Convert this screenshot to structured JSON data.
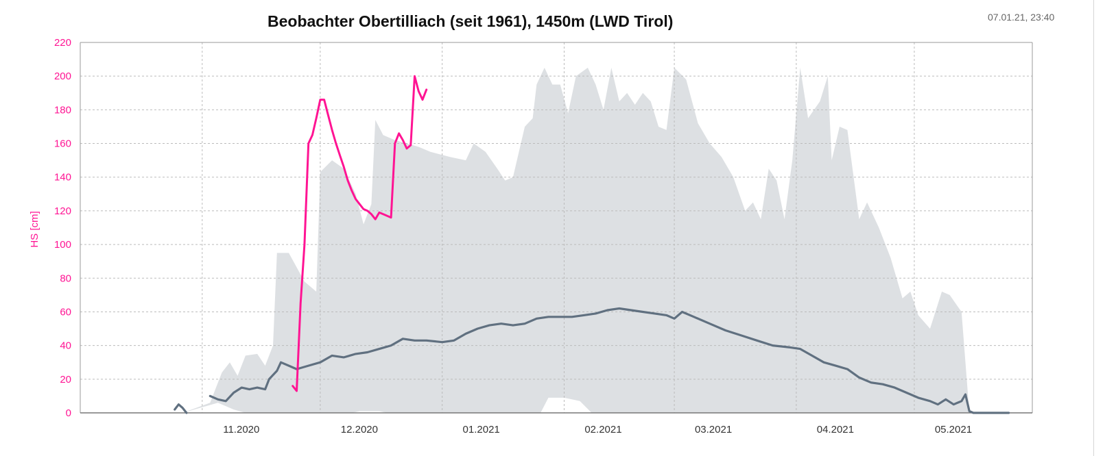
{
  "header": {
    "title": "Beobachter Obertilliach (seit 1961), 1450m (LWD Tirol)",
    "timestamp": "07.01.21, 23:40"
  },
  "colors": {
    "current_season": "#ff1493",
    "median": "#607080",
    "range_band": "#dde0e3",
    "grid": "#bbbbbb"
  },
  "chart_data": {
    "type": "line",
    "title": "Beobachter Obertilliach (seit 1961), 1450m (LWD Tirol)",
    "ylabel": "HS [cm]",
    "xlabel": "",
    "ylim": [
      0,
      220
    ],
    "yticks": [
      0,
      20,
      40,
      60,
      80,
      100,
      120,
      140,
      160,
      180,
      200,
      220
    ],
    "xlim": [
      "2020-10-01",
      "2021-05-31"
    ],
    "xticks": [
      {
        "date": "2020-11-01",
        "label": "11.2020"
      },
      {
        "date": "2020-12-01",
        "label": "12.2020"
      },
      {
        "date": "2021-01-01",
        "label": "01.2021"
      },
      {
        "date": "2021-02-01",
        "label": "02.2021"
      },
      {
        "date": "2021-03-01",
        "label": "03.2021"
      },
      {
        "date": "2021-04-01",
        "label": "04.2021"
      },
      {
        "date": "2021-05-01",
        "label": "05.2021"
      }
    ],
    "grid": true,
    "legend": "none",
    "series": [
      {
        "kind": "band",
        "color": "#dde0e3",
        "upper": [
          [
            "2020-10-27",
            0
          ],
          [
            "2020-11-03",
            6
          ],
          [
            "2020-11-06",
            24
          ],
          [
            "2020-11-08",
            30
          ],
          [
            "2020-11-10",
            22
          ],
          [
            "2020-11-12",
            34
          ],
          [
            "2020-11-15",
            35
          ],
          [
            "2020-11-17",
            28
          ],
          [
            "2020-11-19",
            40
          ],
          [
            "2020-11-20",
            95
          ],
          [
            "2020-11-23",
            95
          ],
          [
            "2020-11-27",
            78
          ],
          [
            "2020-11-30",
            72
          ],
          [
            "2020-12-01",
            143
          ],
          [
            "2020-12-04",
            150
          ],
          [
            "2020-12-07",
            145
          ],
          [
            "2020-12-10",
            130
          ],
          [
            "2020-12-12",
            112
          ],
          [
            "2020-12-14",
            124
          ],
          [
            "2020-12-15",
            174
          ],
          [
            "2020-12-17",
            165
          ],
          [
            "2020-12-20",
            162
          ],
          [
            "2020-12-23",
            160
          ],
          [
            "2020-12-26",
            158
          ],
          [
            "2020-12-29",
            155
          ],
          [
            "2021-01-03",
            152
          ],
          [
            "2021-01-07",
            150
          ],
          [
            "2021-01-09",
            160
          ],
          [
            "2021-01-12",
            155
          ],
          [
            "2021-01-15",
            145
          ],
          [
            "2021-01-17",
            138
          ],
          [
            "2021-01-19",
            140
          ],
          [
            "2021-01-22",
            170
          ],
          [
            "2021-01-24",
            175
          ],
          [
            "2021-01-25",
            195
          ],
          [
            "2021-01-27",
            205
          ],
          [
            "2021-01-29",
            195
          ],
          [
            "2021-01-31",
            195
          ],
          [
            "2021-02-02",
            178
          ],
          [
            "2021-02-04",
            200
          ],
          [
            "2021-02-07",
            205
          ],
          [
            "2021-02-09",
            195
          ],
          [
            "2021-02-11",
            180
          ],
          [
            "2021-02-13",
            205
          ],
          [
            "2021-02-15",
            185
          ],
          [
            "2021-02-17",
            190
          ],
          [
            "2021-02-19",
            183
          ],
          [
            "2021-02-21",
            190
          ],
          [
            "2021-02-23",
            185
          ],
          [
            "2021-02-25",
            170
          ],
          [
            "2021-02-27",
            168
          ],
          [
            "2021-03-01",
            205
          ],
          [
            "2021-03-04",
            198
          ],
          [
            "2021-03-07",
            172
          ],
          [
            "2021-03-10",
            160
          ],
          [
            "2021-03-13",
            152
          ],
          [
            "2021-03-16",
            140
          ],
          [
            "2021-03-19",
            120
          ],
          [
            "2021-03-21",
            125
          ],
          [
            "2021-03-23",
            115
          ],
          [
            "2021-03-25",
            145
          ],
          [
            "2021-03-27",
            138
          ],
          [
            "2021-03-29",
            115
          ],
          [
            "2021-03-31",
            150
          ],
          [
            "2021-04-02",
            205
          ],
          [
            "2021-04-04",
            175
          ],
          [
            "2021-04-07",
            185
          ],
          [
            "2021-04-09",
            200
          ],
          [
            "2021-04-10",
            150
          ],
          [
            "2021-04-12",
            170
          ],
          [
            "2021-04-14",
            168
          ],
          [
            "2021-04-17",
            115
          ],
          [
            "2021-04-19",
            125
          ],
          [
            "2021-04-22",
            110
          ],
          [
            "2021-04-25",
            92
          ],
          [
            "2021-04-28",
            68
          ],
          [
            "2021-04-30",
            72
          ],
          [
            "2021-05-02",
            58
          ],
          [
            "2021-05-05",
            50
          ],
          [
            "2021-05-08",
            72
          ],
          [
            "2021-05-10",
            70
          ],
          [
            "2021-05-13",
            60
          ],
          [
            "2021-05-15",
            0
          ]
        ],
        "lower": [
          [
            "2020-10-27",
            0
          ],
          [
            "2020-11-05",
            6
          ],
          [
            "2020-11-09",
            2
          ],
          [
            "2020-11-12",
            0
          ],
          [
            "2020-12-09",
            0
          ],
          [
            "2020-12-11",
            1
          ],
          [
            "2020-12-16",
            1
          ],
          [
            "2020-12-18",
            0
          ],
          [
            "2021-01-26",
            0
          ],
          [
            "2021-01-28",
            9
          ],
          [
            "2021-02-01",
            9
          ],
          [
            "2021-02-05",
            7
          ],
          [
            "2021-02-08",
            0
          ],
          [
            "2021-05-15",
            0
          ]
        ]
      },
      {
        "kind": "line",
        "color": "#607080",
        "points": [
          [
            "2020-10-25",
            2
          ],
          [
            "2020-10-26",
            5
          ],
          [
            "2020-10-27",
            3
          ],
          [
            "2020-10-28",
            0
          ],
          [
            "2020-11-03",
            10
          ],
          [
            "2020-11-05",
            8
          ],
          [
            "2020-11-07",
            7
          ],
          [
            "2020-11-09",
            12
          ],
          [
            "2020-11-11",
            15
          ],
          [
            "2020-11-13",
            14
          ],
          [
            "2020-11-15",
            15
          ],
          [
            "2020-11-17",
            14
          ],
          [
            "2020-11-18",
            20
          ],
          [
            "2020-11-20",
            25
          ],
          [
            "2020-11-21",
            30
          ],
          [
            "2020-11-23",
            28
          ],
          [
            "2020-11-25",
            26
          ],
          [
            "2020-11-28",
            28
          ],
          [
            "2020-12-01",
            30
          ],
          [
            "2020-12-04",
            34
          ],
          [
            "2020-12-07",
            33
          ],
          [
            "2020-12-10",
            35
          ],
          [
            "2020-12-13",
            36
          ],
          [
            "2020-12-16",
            38
          ],
          [
            "2020-12-19",
            40
          ],
          [
            "2020-12-22",
            44
          ],
          [
            "2020-12-25",
            43
          ],
          [
            "2020-12-28",
            43
          ],
          [
            "2021-01-01",
            42
          ],
          [
            "2021-01-04",
            43
          ],
          [
            "2021-01-07",
            47
          ],
          [
            "2021-01-10",
            50
          ],
          [
            "2021-01-13",
            52
          ],
          [
            "2021-01-16",
            53
          ],
          [
            "2021-01-19",
            52
          ],
          [
            "2021-01-22",
            53
          ],
          [
            "2021-01-25",
            56
          ],
          [
            "2021-01-28",
            57
          ],
          [
            "2021-01-31",
            57
          ],
          [
            "2021-02-03",
            57
          ],
          [
            "2021-02-06",
            58
          ],
          [
            "2021-02-09",
            59
          ],
          [
            "2021-02-12",
            61
          ],
          [
            "2021-02-15",
            62
          ],
          [
            "2021-02-18",
            61
          ],
          [
            "2021-02-21",
            60
          ],
          [
            "2021-02-24",
            59
          ],
          [
            "2021-02-27",
            58
          ],
          [
            "2021-03-01",
            56
          ],
          [
            "2021-03-03",
            60
          ],
          [
            "2021-03-06",
            57
          ],
          [
            "2021-03-10",
            53
          ],
          [
            "2021-03-14",
            49
          ],
          [
            "2021-03-18",
            46
          ],
          [
            "2021-03-22",
            43
          ],
          [
            "2021-03-26",
            40
          ],
          [
            "2021-03-30",
            39
          ],
          [
            "2021-04-02",
            38
          ],
          [
            "2021-04-05",
            34
          ],
          [
            "2021-04-08",
            30
          ],
          [
            "2021-04-11",
            28
          ],
          [
            "2021-04-14",
            26
          ],
          [
            "2021-04-17",
            21
          ],
          [
            "2021-04-20",
            18
          ],
          [
            "2021-04-23",
            17
          ],
          [
            "2021-04-26",
            15
          ],
          [
            "2021-04-29",
            12
          ],
          [
            "2021-05-02",
            9
          ],
          [
            "2021-05-05",
            7
          ],
          [
            "2021-05-07",
            5
          ],
          [
            "2021-05-09",
            8
          ],
          [
            "2021-05-11",
            5
          ],
          [
            "2021-05-13",
            7
          ],
          [
            "2021-05-14",
            11
          ],
          [
            "2021-05-15",
            1
          ],
          [
            "2021-05-16",
            0
          ],
          [
            "2021-05-25",
            0
          ]
        ]
      },
      {
        "kind": "line",
        "color": "#ff1493",
        "points": [
          [
            "2020-11-24",
            16
          ],
          [
            "2020-11-25",
            13
          ],
          [
            "2020-11-26",
            65
          ],
          [
            "2020-11-27",
            100
          ],
          [
            "2020-11-28",
            160
          ],
          [
            "2020-11-29",
            165
          ],
          [
            "2020-11-30",
            175
          ],
          [
            "2020-12-01",
            186
          ],
          [
            "2020-12-02",
            186
          ],
          [
            "2020-12-03",
            177
          ],
          [
            "2020-12-04",
            168
          ],
          [
            "2020-12-05",
            160
          ],
          [
            "2020-12-06",
            153
          ],
          [
            "2020-12-07",
            146
          ],
          [
            "2020-12-08",
            138
          ],
          [
            "2020-12-09",
            132
          ],
          [
            "2020-12-10",
            127
          ],
          [
            "2020-12-11",
            124
          ],
          [
            "2020-12-12",
            121
          ],
          [
            "2020-12-13",
            120
          ],
          [
            "2020-12-14",
            118
          ],
          [
            "2020-12-15",
            115
          ],
          [
            "2020-12-16",
            119
          ],
          [
            "2020-12-17",
            118
          ],
          [
            "2020-12-18",
            117
          ],
          [
            "2020-12-19",
            116
          ],
          [
            "2020-12-20",
            160
          ],
          [
            "2020-12-21",
            166
          ],
          [
            "2020-12-22",
            162
          ],
          [
            "2020-12-23",
            157
          ],
          [
            "2020-12-24",
            159
          ],
          [
            "2020-12-25",
            200
          ],
          [
            "2020-12-26",
            191
          ],
          [
            "2020-12-27",
            186
          ],
          [
            "2020-12-28",
            192
          ]
        ]
      }
    ]
  }
}
